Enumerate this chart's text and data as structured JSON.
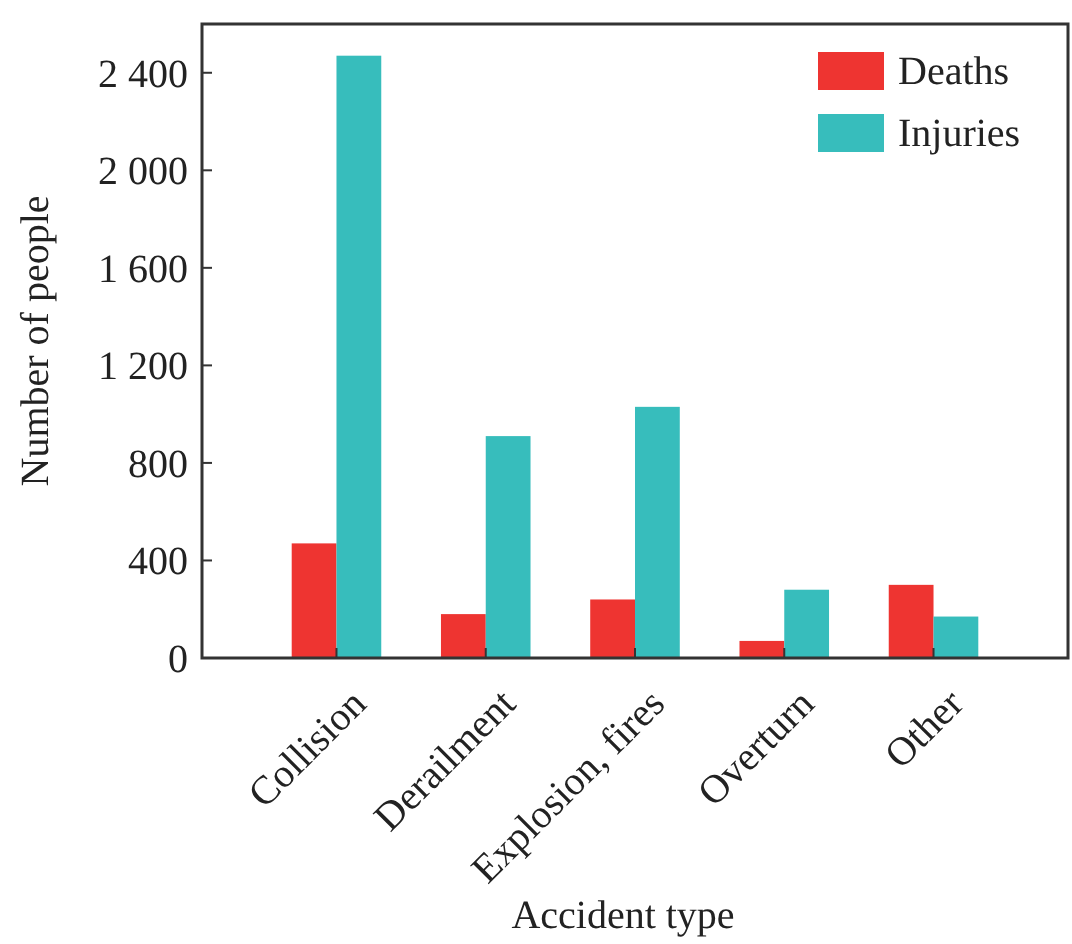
{
  "chart_data": {
    "type": "bar",
    "xlabel": "Accident type",
    "ylabel": "Number of people",
    "categories": [
      "Collision",
      "Derailment",
      "Explosion, fires",
      "Overturn",
      "Other"
    ],
    "series": [
      {
        "name": "Deaths",
        "color": "#ee3431",
        "values": [
          470,
          180,
          240,
          70,
          300
        ]
      },
      {
        "name": "Injuries",
        "color": "#37bdbc",
        "values": [
          2470,
          910,
          1030,
          280,
          170
        ]
      }
    ],
    "ylim": [
      0,
      2600
    ],
    "yticks": [
      0,
      400,
      800,
      {
        "value": 1200,
        "label": "1 200"
      },
      {
        "value": 1600,
        "label": "1 600"
      },
      {
        "value": 2000,
        "label": "2 000"
      },
      {
        "value": 2400,
        "label": "2 400"
      }
    ],
    "legend": "top right",
    "grid": false
  }
}
